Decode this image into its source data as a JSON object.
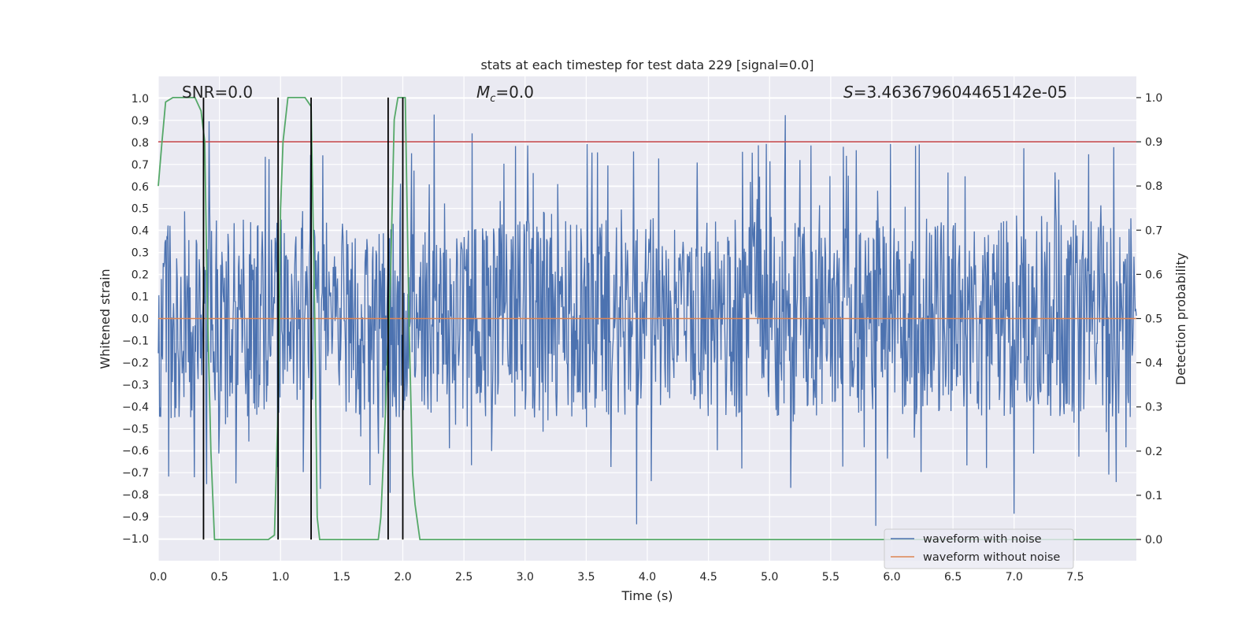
{
  "chart_data": {
    "type": "line",
    "title": "stats at each timestep for test data 229 [signal=0.0]",
    "xlabel": "Time (s)",
    "ylabel": "Whitened strain",
    "y2label": "Detection probability",
    "xlim": [
      0,
      8
    ],
    "ylim": [
      -1.1,
      1.1
    ],
    "y2lim": [
      -0.048,
      1.048
    ],
    "xticks": [
      0.0,
      0.5,
      1.0,
      1.5,
      2.0,
      2.5,
      3.0,
      3.5,
      4.0,
      4.5,
      5.0,
      5.5,
      6.0,
      6.5,
      7.0,
      7.5
    ],
    "xtick_labels": [
      "0.0",
      "0.5",
      "1.0",
      "1.5",
      "2.0",
      "2.5",
      "3.0",
      "3.5",
      "4.0",
      "4.5",
      "5.0",
      "5.5",
      "6.0",
      "6.5",
      "7.0",
      "7.5"
    ],
    "yticks": [
      1.0,
      0.9,
      0.8,
      0.7,
      0.6,
      0.5,
      0.4,
      0.3,
      0.2,
      0.1,
      0.0,
      -0.1,
      -0.2,
      -0.3,
      -0.4,
      -0.5,
      -0.6,
      -0.7,
      -0.8,
      -0.9,
      -1.0
    ],
    "ytick_labels": [
      "1.0",
      "0.9",
      "0.8",
      "0.7",
      "0.6",
      "0.5",
      "0.4",
      "0.3",
      "0.2",
      "0.1",
      "0.0",
      "−0.1",
      "−0.2",
      "−0.3",
      "−0.4",
      "−0.5",
      "−0.6",
      "−0.7",
      "−0.8",
      "−0.9",
      "−1.0"
    ],
    "y2ticks": [
      1.0,
      0.9,
      0.8,
      0.7,
      0.6,
      0.5,
      0.4,
      0.3,
      0.2,
      0.1,
      0.0
    ],
    "y2tick_labels": [
      "1.0",
      "0.9",
      "0.8",
      "0.7",
      "0.6",
      "0.5",
      "0.4",
      "0.3",
      "0.2",
      "0.1",
      "0.0"
    ],
    "annotations": {
      "snr": "SNR=0.0",
      "mc_symbol": "M",
      "mc_sub": "c",
      "mc_value": "=0.0",
      "s_symbol": "S",
      "s_value": "=3.463679604465142e-05"
    },
    "series": [
      {
        "name": "waveform with noise",
        "color": "#4c72b0",
        "kind": "noise",
        "points": 1600,
        "typical_envelope": [
          -0.45,
          0.45
        ],
        "extremes": {
          "max": 0.96,
          "min": -0.96
        }
      },
      {
        "name": "waveform without noise",
        "color": "#dd8452",
        "x": [
          0,
          8
        ],
        "y": [
          0.0,
          0.0
        ]
      },
      {
        "name": "detection probability",
        "color": "#55a868",
        "axis": "right",
        "x": [
          0.0,
          0.03,
          0.06,
          0.12,
          0.3,
          0.35,
          0.38,
          0.4,
          0.43,
          0.46,
          0.5,
          0.9,
          0.95,
          0.98,
          1.0,
          1.02,
          1.06,
          1.2,
          1.25,
          1.28,
          1.3,
          1.32,
          1.36,
          1.8,
          1.82,
          1.86,
          1.9,
          1.93,
          1.96,
          2.02,
          2.05,
          2.08,
          2.1,
          2.14,
          8.0
        ],
        "y": [
          0.8,
          0.9,
          0.99,
          1.0,
          1.0,
          0.97,
          0.9,
          0.55,
          0.2,
          0.0,
          0.0,
          0.0,
          0.01,
          0.3,
          0.75,
          0.9,
          1.0,
          1.0,
          0.98,
          0.5,
          0.05,
          0.0,
          0.0,
          0.0,
          0.05,
          0.3,
          0.6,
          0.95,
          1.0,
          1.0,
          0.5,
          0.15,
          0.08,
          0.0,
          0.0
        ]
      },
      {
        "name": "threshold",
        "color": "#c44e52",
        "axis": "right",
        "x": [
          0,
          8
        ],
        "y": [
          0.9,
          0.9
        ]
      }
    ],
    "vlines": {
      "color": "#000000",
      "x": [
        0.37,
        0.98,
        1.25,
        1.88,
        2.0
      ],
      "y2range": [
        0.0,
        1.0
      ]
    },
    "legend": {
      "position": "lower-right",
      "entries": [
        {
          "label": "waveform with noise",
          "color": "#4c72b0"
        },
        {
          "label": "waveform without noise",
          "color": "#dd8452"
        }
      ]
    },
    "colors": {
      "plot_bg": "#eaeaf2",
      "grid": "#ffffff"
    }
  }
}
